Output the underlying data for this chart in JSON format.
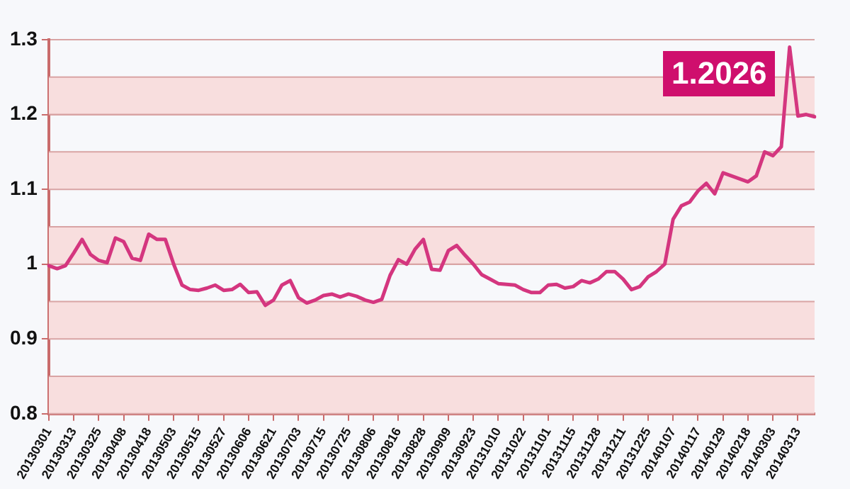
{
  "chart_data": {
    "type": "line",
    "categories": [
      "20130301",
      null,
      null,
      "20130313",
      null,
      null,
      "20130325",
      null,
      null,
      "20130408",
      null,
      null,
      "20130418",
      null,
      null,
      "20130503",
      null,
      null,
      "20130515",
      null,
      null,
      "20130527",
      null,
      null,
      "20130606",
      null,
      null,
      "20130621",
      null,
      null,
      "20130703",
      null,
      null,
      "20130715",
      null,
      null,
      "20130725",
      null,
      null,
      "20130806",
      null,
      null,
      "20130816",
      null,
      null,
      "20130828",
      null,
      null,
      "20130909",
      null,
      null,
      "20130923",
      null,
      null,
      "20131010",
      null,
      null,
      "20131022",
      null,
      null,
      "20131101",
      null,
      null,
      "20131115",
      null,
      null,
      "20131128",
      null,
      null,
      "20131211",
      null,
      null,
      "20131225",
      null,
      null,
      "20140107",
      null,
      null,
      "20140117",
      null,
      null,
      "20140129",
      null,
      null,
      "20140218",
      null,
      null,
      "20140303",
      null,
      null,
      "20140313",
      null,
      null
    ],
    "series": [
      {
        "color": "#d4367f",
        "values": [
          0.998,
          0.994,
          0.998,
          1.015,
          1.033,
          1.013,
          1.005,
          1.002,
          1.035,
          1.03,
          1.008,
          1.005,
          1.04,
          1.033,
          1.033,
          1.0,
          0.972,
          0.966,
          0.965,
          0.968,
          0.972,
          0.965,
          0.966,
          0.973,
          0.962,
          0.963,
          0.945,
          0.952,
          0.972,
          0.978,
          0.955,
          0.948,
          0.952,
          0.958,
          0.96,
          0.956,
          0.96,
          0.957,
          0.952,
          0.949,
          0.953,
          0.985,
          1.006,
          1.0,
          1.02,
          1.033,
          0.993,
          0.992,
          1.018,
          1.025,
          1.012,
          1.0,
          0.986,
          0.98,
          0.974,
          0.973,
          0.972,
          0.966,
          0.962,
          0.962,
          0.972,
          0.973,
          0.968,
          0.97,
          0.978,
          0.975,
          0.98,
          0.99,
          0.99,
          0.98,
          0.966,
          0.97,
          0.983,
          0.99,
          1.0,
          1.06,
          1.078,
          1.083,
          1.098,
          1.108,
          1.094,
          1.122,
          1.118,
          1.114,
          1.11,
          1.118,
          1.15,
          1.145,
          1.157,
          1.29,
          1.198,
          1.2,
          1.197
        ]
      }
    ],
    "ylim": [
      0.8,
      1.3
    ],
    "yticks": [
      0.8,
      0.9,
      1,
      1.1,
      1.2,
      1.3
    ],
    "grid": "y",
    "legend": false,
    "marker": "none",
    "line_style": "solid",
    "bands": [
      {
        "axis": "y",
        "from": 0.8,
        "to": 0.85,
        "color": "#f8dede"
      },
      {
        "axis": "y",
        "from": 0.9,
        "to": 0.95,
        "color": "#f8dede"
      },
      {
        "axis": "y",
        "from": 1.0,
        "to": 1.05,
        "color": "#f8dede"
      },
      {
        "axis": "y",
        "from": 1.1,
        "to": 1.15,
        "color": "#f8dede"
      },
      {
        "axis": "y",
        "from": 1.2,
        "to": 1.25,
        "color": "#f8dede"
      }
    ],
    "annotations": [
      "1.2026"
    ]
  }
}
